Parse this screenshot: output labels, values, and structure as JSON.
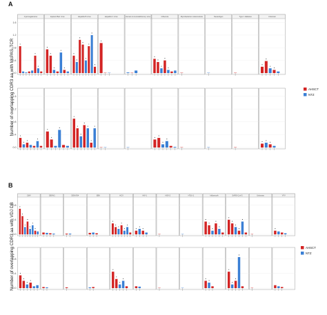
{
  "chart_data": [
    {
      "panel": "A",
      "type": "bar",
      "ylabel": "Number of overlapping CDR3 aa with McPAS-TCR",
      "yticks": [
        0.0,
        0.4,
        0.8,
        1.2,
        1.6
      ],
      "ylim": [
        0,
        1.7
      ],
      "facets_top": [
        "Cytomegalovirus",
        "Epstein Barr virus",
        "Hepatitis B virus",
        "Hepatitis C virus",
        "Human immunodeficiency virus",
        "Influenza",
        "Mycobacterium tuberculosis",
        "Neoantigen",
        "Type 1 diabetes",
        "Unknown"
      ],
      "legend": [
        {
          "name": "AHSCT",
          "color": "#d32424"
        },
        {
          "name": "NTZ",
          "color": "#3a7fd5"
        }
      ],
      "rows": [
        {
          "bars": [
            [
              [
                0.85,
                "r"
              ],
              [
                0.05,
                "b"
              ],
              [
                0.02,
                "b"
              ],
              [
                0.05,
                "r"
              ],
              [
                0.08,
                "b"
              ],
              [
                0.55,
                "r"
              ],
              [
                0.15,
                "b"
              ],
              [
                0.05,
                "r"
              ]
            ],
            [
              [
                0.75,
                "r"
              ],
              [
                0.55,
                "r"
              ],
              [
                0.1,
                "b"
              ],
              [
                0.05,
                "r"
              ],
              [
                0.65,
                "b"
              ],
              [
                0.1,
                "r"
              ],
              [
                0.05,
                "b"
              ]
            ],
            [
              [
                0.55,
                "r"
              ],
              [
                0.35,
                "b"
              ],
              [
                1.05,
                "r"
              ],
              [
                0.9,
                "r"
              ],
              [
                0.4,
                "b"
              ],
              [
                0.85,
                "r"
              ],
              [
                1.2,
                "b"
              ],
              [
                0.2,
                "r"
              ]
            ],
            [
              [
                0.95,
                "r"
              ],
              [
                0,
                "r"
              ],
              [
                0,
                "b"
              ]
            ],
            [
              [
                0.02,
                "b"
              ],
              [
                0,
                "r"
              ],
              [
                0.08,
                "b"
              ]
            ],
            [
              [
                0.45,
                "r"
              ],
              [
                0.35,
                "r"
              ],
              [
                0.15,
                "b"
              ],
              [
                0.4,
                "r"
              ],
              [
                0.1,
                "b"
              ],
              [
                0.05,
                "r"
              ],
              [
                0.08,
                "b"
              ]
            ],
            [
              [
                0,
                "r"
              ]
            ],
            [
              [
                0,
                "b"
              ]
            ],
            [
              [
                0,
                "r"
              ]
            ],
            [
              [
                0.2,
                "r"
              ],
              [
                0.38,
                "r"
              ],
              [
                0.15,
                "b"
              ],
              [
                0.1,
                "r"
              ],
              [
                0.05,
                "b"
              ]
            ]
          ]
        },
        {
          "bars": [
            [
              [
                0.3,
                "r"
              ],
              [
                0.1,
                "b"
              ],
              [
                0.15,
                "r"
              ],
              [
                0.08,
                "b"
              ],
              [
                0.05,
                "r"
              ],
              [
                0.2,
                "b"
              ],
              [
                0.05,
                "r"
              ]
            ],
            [
              [
                0.5,
                "r"
              ],
              [
                0.25,
                "r"
              ],
              [
                0.05,
                "b"
              ],
              [
                0.55,
                "b"
              ],
              [
                0.08,
                "r"
              ],
              [
                0.05,
                "b"
              ]
            ],
            [
              [
                0.9,
                "r"
              ],
              [
                0.6,
                "r"
              ],
              [
                0.35,
                "b"
              ],
              [
                0.7,
                "r"
              ],
              [
                0.6,
                "b"
              ],
              [
                0.15,
                "r"
              ],
              [
                0.6,
                "b"
              ]
            ],
            [
              [
                0,
                "r"
              ],
              [
                0,
                "b"
              ]
            ],
            [
              [
                0,
                "b"
              ]
            ],
            [
              [
                0.25,
                "r"
              ],
              [
                0.3,
                "r"
              ],
              [
                0.1,
                "b"
              ],
              [
                0.2,
                "b"
              ],
              [
                0.05,
                "r"
              ],
              [
                0.02,
                "b"
              ]
            ],
            [
              [
                0,
                "r"
              ]
            ],
            [
              [
                0,
                "b"
              ]
            ],
            [
              [
                0,
                "r"
              ]
            ],
            [
              [
                0.12,
                "r"
              ],
              [
                0.15,
                "b"
              ],
              [
                0.1,
                "r"
              ],
              [
                0.05,
                "b"
              ]
            ]
          ]
        }
      ]
    },
    {
      "panel": "B",
      "type": "bar",
      "ylabel": "Number of overlapping CDR3 aa with VDJ DB",
      "yticks": [
        0.0,
        0.4,
        0.8
      ],
      "ylim": [
        0,
        1.0
      ],
      "facets_top": [
        "CMV",
        "DENV1",
        "DENV3/4",
        "EBV",
        "HCV",
        "HIV-1",
        "HSV-2",
        "HTLV-1",
        "InfluenzaA",
        "SARS-CoV-2",
        "Unknown",
        "YFV"
      ],
      "legend": [
        {
          "name": "AHSCT",
          "color": "#d32424"
        },
        {
          "name": "NTZ",
          "color": "#3a7fd5"
        }
      ],
      "rows": [
        {
          "bars": [
            [
              [
                0.7,
                "r"
              ],
              [
                0.5,
                "r"
              ],
              [
                0.2,
                "b"
              ],
              [
                0.35,
                "r"
              ],
              [
                0.15,
                "b"
              ],
              [
                0.25,
                "b"
              ],
              [
                0.1,
                "r"
              ],
              [
                0.08,
                "b"
              ]
            ],
            [
              [
                0.05,
                "r"
              ],
              [
                0.04,
                "b"
              ],
              [
                0.03,
                "r"
              ],
              [
                0.02,
                "b"
              ]
            ],
            [
              [
                0.02,
                "r"
              ],
              [
                0.02,
                "b"
              ]
            ],
            [
              [
                0.04,
                "r"
              ],
              [
                0.05,
                "b"
              ],
              [
                0.03,
                "r"
              ]
            ],
            [
              [
                0.3,
                "r"
              ],
              [
                0.2,
                "r"
              ],
              [
                0.15,
                "b"
              ],
              [
                0.25,
                "r"
              ],
              [
                0.1,
                "b"
              ],
              [
                0.2,
                "b"
              ],
              [
                0.05,
                "r"
              ]
            ],
            [
              [
                0.1,
                "r"
              ],
              [
                0.15,
                "b"
              ],
              [
                0.1,
                "r"
              ],
              [
                0.05,
                "b"
              ]
            ],
            [
              [
                0,
                "r"
              ]
            ],
            [
              [
                0,
                "b"
              ]
            ],
            [
              [
                0.35,
                "r"
              ],
              [
                0.25,
                "r"
              ],
              [
                0.1,
                "b"
              ],
              [
                0.3,
                "r"
              ],
              [
                0.15,
                "b"
              ],
              [
                0.05,
                "r"
              ]
            ],
            [
              [
                0.4,
                "r"
              ],
              [
                0.3,
                "r"
              ],
              [
                0.2,
                "b"
              ],
              [
                0.1,
                "r"
              ],
              [
                0.35,
                "b"
              ],
              [
                0.05,
                "r"
              ]
            ],
            [
              [
                0,
                "r"
              ]
            ],
            [
              [
                0.1,
                "r"
              ],
              [
                0.08,
                "b"
              ],
              [
                0.05,
                "r"
              ],
              [
                0.03,
                "b"
              ]
            ]
          ]
        },
        {
          "bars": [
            [
              [
                0.35,
                "r"
              ],
              [
                0.2,
                "r"
              ],
              [
                0.1,
                "b"
              ],
              [
                0.15,
                "r"
              ],
              [
                0.05,
                "b"
              ],
              [
                0.08,
                "b"
              ]
            ],
            [
              [
                0.03,
                "r"
              ],
              [
                0.02,
                "b"
              ]
            ],
            [
              [
                0.02,
                "r"
              ]
            ],
            [
              [
                0.02,
                "b"
              ],
              [
                0.03,
                "r"
              ]
            ],
            [
              [
                0.45,
                "r"
              ],
              [
                0.25,
                "r"
              ],
              [
                0.1,
                "b"
              ],
              [
                0.2,
                "b"
              ],
              [
                0.05,
                "r"
              ]
            ],
            [
              [
                0.05,
                "r"
              ],
              [
                0.04,
                "b"
              ]
            ],
            [
              [
                0,
                "r"
              ]
            ],
            [
              [
                0,
                "b"
              ]
            ],
            [
              [
                0.2,
                "r"
              ],
              [
                0.15,
                "b"
              ],
              [
                0.05,
                "r"
              ]
            ],
            [
              [
                0.45,
                "r"
              ],
              [
                0.1,
                "b"
              ],
              [
                0.2,
                "r"
              ],
              [
                0.85,
                "b"
              ],
              [
                0.05,
                "r"
              ]
            ],
            [
              [
                0,
                "r"
              ]
            ],
            [
              [
                0.08,
                "r"
              ],
              [
                0.05,
                "b"
              ],
              [
                0.03,
                "r"
              ]
            ]
          ]
        }
      ]
    }
  ]
}
